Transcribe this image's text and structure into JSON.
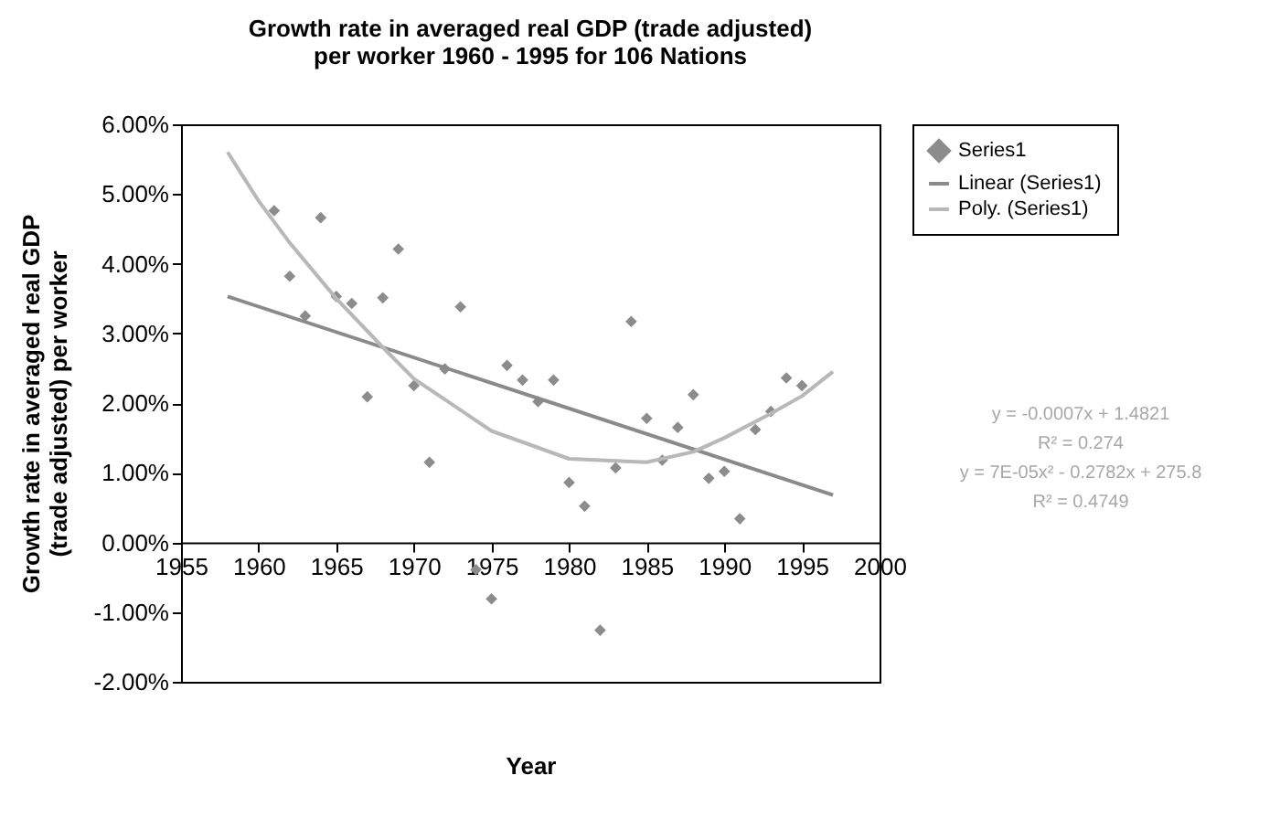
{
  "chart_data": {
    "type": "scatter",
    "title": "Growth rate in averaged real GDP (trade adjusted) per worker 1960 - 1995 for 106 Nations",
    "xlabel": "Year",
    "ylabel": "Growth rate in averaged real GDP (trade adjusted) per worker",
    "xlim": [
      1955,
      2000
    ],
    "xticks": [
      1955,
      1960,
      1965,
      1970,
      1975,
      1980,
      1985,
      1990,
      1995,
      2000
    ],
    "ylim": [
      -2,
      6
    ],
    "yticks": [
      {
        "value": -2,
        "label": "-2.00%"
      },
      {
        "value": -1,
        "label": "-1.00%"
      },
      {
        "value": 0,
        "label": "0.00%"
      },
      {
        "value": 1,
        "label": "1.00%"
      },
      {
        "value": 2,
        "label": "2.00%"
      },
      {
        "value": 3,
        "label": "3.00%"
      },
      {
        "value": 4,
        "label": "4.00%"
      },
      {
        "value": 5,
        "label": "5.00%"
      },
      {
        "value": 6,
        "label": "6.00%"
      }
    ],
    "series": [
      {
        "name": "Series1",
        "marker": "diamond",
        "color": "#8c8c8c",
        "x": [
          1961,
          1962,
          1963,
          1964,
          1965,
          1966,
          1967,
          1968,
          1969,
          1970,
          1971,
          1972,
          1973,
          1974,
          1975,
          1976,
          1977,
          1978,
          1979,
          1980,
          1981,
          1982,
          1983,
          1984,
          1985,
          1986,
          1987,
          1988,
          1989,
          1990,
          1991,
          1992,
          1993,
          1994,
          1995
        ],
        "values": [
          4.76,
          3.82,
          3.25,
          4.66,
          3.53,
          3.43,
          2.09,
          3.51,
          4.21,
          2.25,
          1.15,
          2.49,
          3.38,
          -0.39,
          -0.81,
          2.54,
          2.33,
          2.02,
          2.33,
          0.86,
          0.52,
          -1.26,
          1.07,
          3.17,
          1.78,
          1.18,
          1.65,
          2.12,
          0.92,
          1.02,
          0.34,
          1.62,
          1.88,
          2.36,
          2.25
        ]
      },
      {
        "name": "Linear (Series1)",
        "type": "line",
        "color": "#8a8a8a",
        "x": [
          1958,
          1997
        ],
        "values": [
          3.53,
          0.68
        ]
      },
      {
        "name": "Poly. (Series1)",
        "type": "line",
        "color": "#b8b8b8",
        "x": [
          1958,
          1960,
          1962,
          1965,
          1968,
          1970,
          1975,
          1980,
          1985,
          1988,
          1990,
          1993,
          1995,
          1997
        ],
        "values": [
          5.6,
          4.9,
          4.3,
          3.5,
          2.8,
          2.35,
          1.6,
          1.2,
          1.15,
          1.3,
          1.5,
          1.85,
          2.1,
          2.45
        ]
      }
    ],
    "legend": "right",
    "grid": false,
    "line_style": "solid",
    "annotations": [
      "y = -0.0007x + 1.4821",
      "R² = 0.274",
      "y = 7E-05x² - 0.2782x + 275.8",
      "R² = 0.4749"
    ]
  }
}
